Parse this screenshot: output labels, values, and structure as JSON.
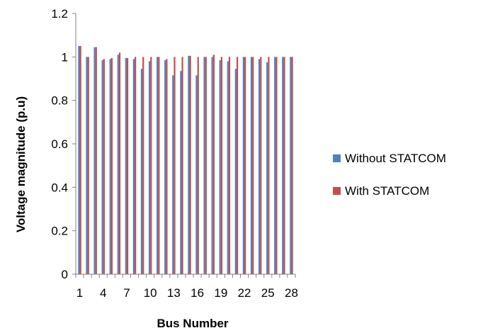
{
  "chart_data": {
    "type": "bar",
    "title": "",
    "xlabel": "Bus Number",
    "ylabel": "Voltage magnitude (p.u)",
    "ylim": [
      0,
      1.2
    ],
    "yticks": [
      "0",
      "0.2",
      "0.4",
      "0.6",
      "0.8",
      "1",
      "1.2"
    ],
    "grid": false,
    "legend_position": "right",
    "categories": [
      "1",
      "2",
      "3",
      "4",
      "5",
      "6",
      "7",
      "8",
      "9",
      "10",
      "11",
      "12",
      "13",
      "14",
      "15",
      "16",
      "17",
      "18",
      "19",
      "20",
      "21",
      "22",
      "23",
      "24",
      "25",
      "26",
      "27",
      "28"
    ],
    "xtick_labels": [
      "1",
      "4",
      "7",
      "10",
      "13",
      "16",
      "19",
      "22",
      "25",
      "28"
    ],
    "series": [
      {
        "name": "Without STATCOM",
        "color": "#4F81BD",
        "values": [
          1.05,
          1.0,
          1.045,
          0.985,
          0.99,
          1.01,
          0.995,
          0.99,
          0.945,
          0.98,
          1.0,
          0.985,
          0.915,
          0.935,
          1.005,
          0.915,
          1.0,
          1.0,
          0.985,
          0.98,
          0.945,
          1.0,
          1.0,
          0.99,
          0.975,
          1.0,
          1.0,
          1.0
        ]
      },
      {
        "name": "With STATCOM",
        "color": "#C0504D",
        "values": [
          1.05,
          1.0,
          1.045,
          0.99,
          0.995,
          1.02,
          0.995,
          1.0,
          1.0,
          1.0,
          1.0,
          0.99,
          1.0,
          1.0,
          1.005,
          1.0,
          1.0,
          1.01,
          1.0,
          1.0,
          1.0,
          1.0,
          1.0,
          1.0,
          1.0,
          1.0,
          1.0,
          1.0
        ]
      }
    ]
  }
}
